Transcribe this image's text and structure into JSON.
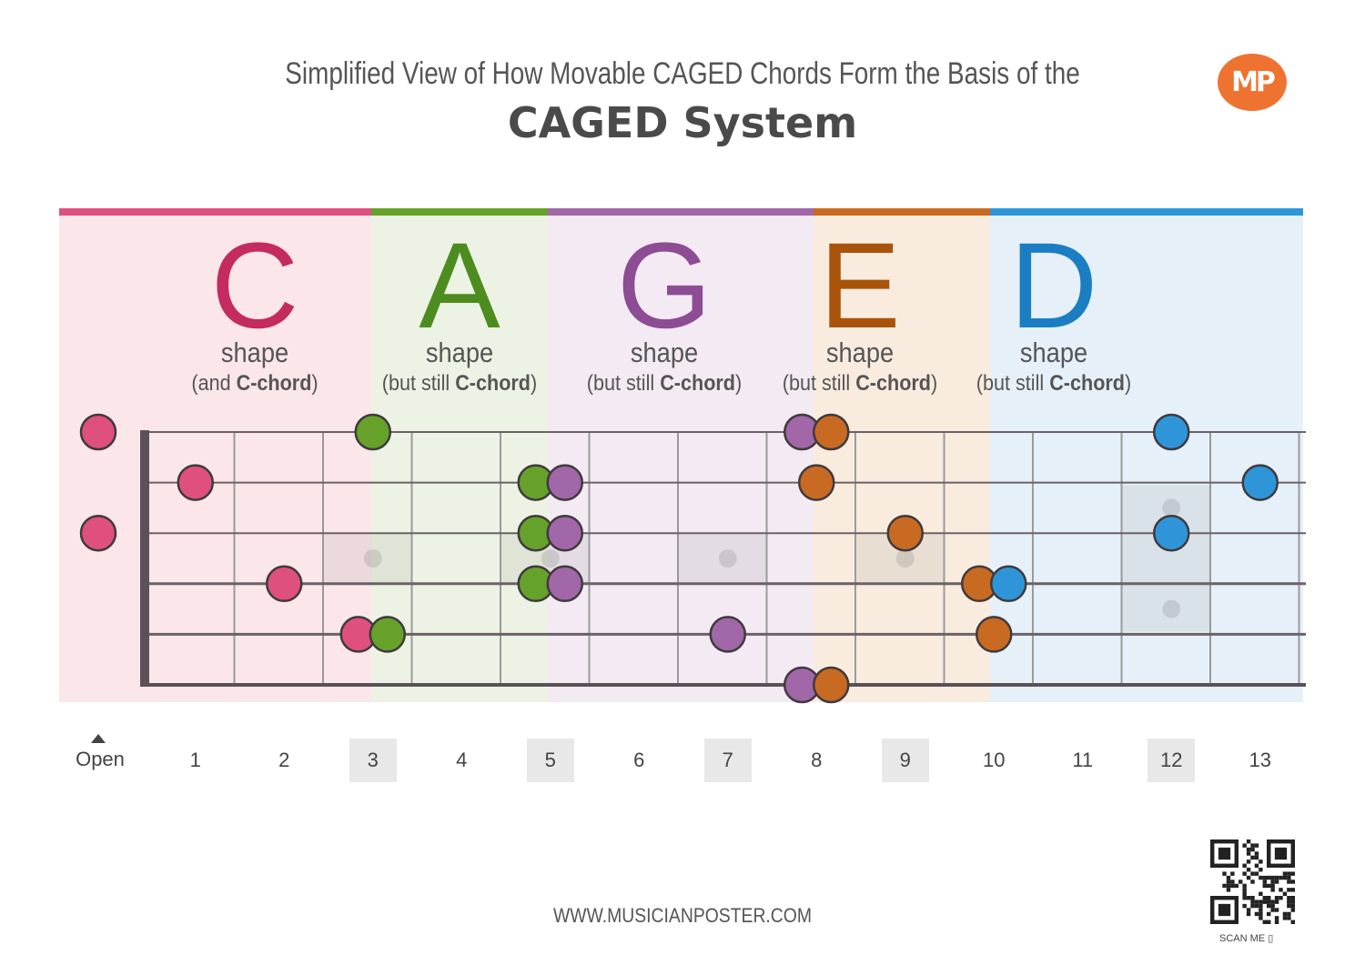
{
  "header": {
    "subtitle": "Simplified View of How Movable CAGED Chords Form the Basis of the",
    "title": "CAGED System",
    "logo_text": "MP"
  },
  "shapes": [
    {
      "letter": "C",
      "word": "shape",
      "sub_prefix": "(and ",
      "sub_bold": "C-chord",
      "sub_suffix": ")",
      "color": "#c42b5e",
      "band": "#e0507f",
      "bg": "#fbe6ea"
    },
    {
      "letter": "A",
      "word": "shape",
      "sub_prefix": "(but still ",
      "sub_bold": "C-chord",
      "sub_suffix": ")",
      "color": "#4d8c1e",
      "band": "#66a22a",
      "bg": "#edf3e4"
    },
    {
      "letter": "G",
      "word": "shape",
      "sub_prefix": "(but still ",
      "sub_bold": "C-chord",
      "sub_suffix": ")",
      "color": "#8d4c94",
      "band": "#a167a8",
      "bg": "#f3eaf3"
    },
    {
      "letter": "E",
      "word": "shape",
      "sub_prefix": "(but still ",
      "sub_bold": "C-chord",
      "sub_suffix": ")",
      "color": "#a9540a",
      "band": "#c96a22",
      "bg": "#f9ecdf"
    },
    {
      "letter": "D",
      "word": "shape",
      "sub_prefix": "(but still ",
      "sub_bold": "C-chord",
      "sub_suffix": ")",
      "color": "#1b7ec2",
      "band": "#2e96d8",
      "bg": "#e6f0f9"
    }
  ],
  "fret_labels": {
    "open": "Open",
    "numbers": [
      "1",
      "2",
      "3",
      "4",
      "5",
      "6",
      "7",
      "8",
      "9",
      "10",
      "11",
      "12",
      "13"
    ],
    "marked": [
      "3",
      "5",
      "7",
      "9",
      "12"
    ]
  },
  "notes": [
    {
      "shape": "C",
      "string": 1,
      "fret": 0
    },
    {
      "shape": "C",
      "string": 3,
      "fret": 0
    },
    {
      "shape": "C",
      "string": 2,
      "fret": 1
    },
    {
      "shape": "C",
      "string": 4,
      "fret": 2
    },
    {
      "shape": "C",
      "string": 5,
      "fret": 3
    },
    {
      "shape": "A",
      "string": 1,
      "fret": 3
    },
    {
      "shape": "A",
      "string": 5,
      "fret": 3
    },
    {
      "shape": "A",
      "string": 2,
      "fret": 5
    },
    {
      "shape": "A",
      "string": 3,
      "fret": 5
    },
    {
      "shape": "A",
      "string": 4,
      "fret": 5
    },
    {
      "shape": "G",
      "string": 2,
      "fret": 5
    },
    {
      "shape": "G",
      "string": 3,
      "fret": 5
    },
    {
      "shape": "G",
      "string": 4,
      "fret": 5
    },
    {
      "shape": "G",
      "string": 5,
      "fret": 7
    },
    {
      "shape": "G",
      "string": 1,
      "fret": 8
    },
    {
      "shape": "G",
      "string": 6,
      "fret": 8
    },
    {
      "shape": "E",
      "string": 1,
      "fret": 8
    },
    {
      "shape": "E",
      "string": 2,
      "fret": 8
    },
    {
      "shape": "E",
      "string": 6,
      "fret": 8
    },
    {
      "shape": "E",
      "string": 3,
      "fret": 9
    },
    {
      "shape": "E",
      "string": 4,
      "fret": 10
    },
    {
      "shape": "E",
      "string": 5,
      "fret": 10
    },
    {
      "shape": "D",
      "string": 4,
      "fret": 10
    },
    {
      "shape": "D",
      "string": 1,
      "fret": 12
    },
    {
      "shape": "D",
      "string": 3,
      "fret": 12
    },
    {
      "shape": "D",
      "string": 2,
      "fret": 13
    }
  ],
  "footer": {
    "website": "WWW.MUSICIANPOSTER.COM",
    "scan_me": "SCAN ME"
  }
}
